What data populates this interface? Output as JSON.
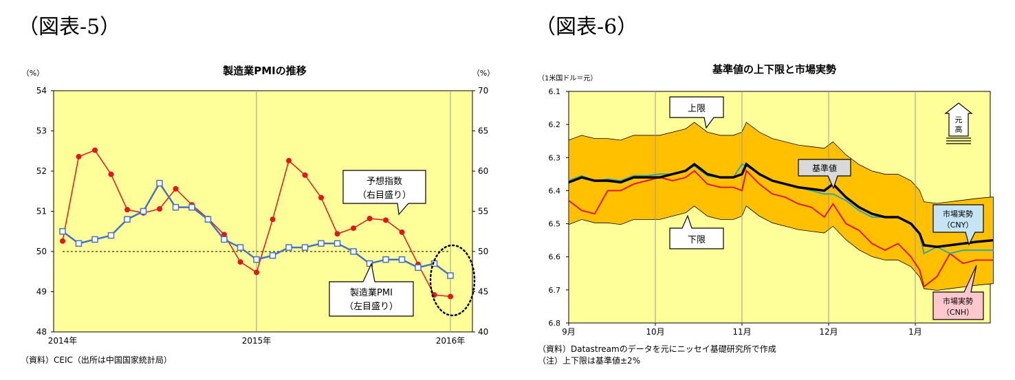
{
  "figures": [
    {
      "label": "（図表-5）"
    },
    {
      "label": "（図表-6）"
    }
  ],
  "chart_data": [
    {
      "type": "line",
      "title": "製造業PMIの推移",
      "left_unit": "（%）",
      "right_unit": "（%）",
      "y_left": {
        "min": 48,
        "max": 54,
        "ticks": [
          "48",
          "49",
          "50",
          "51",
          "52",
          "53",
          "54"
        ]
      },
      "y_right": {
        "min": 40,
        "max": 70,
        "ticks": [
          "40",
          "45",
          "50",
          "55",
          "60",
          "65",
          "70"
        ]
      },
      "x_labels": [
        {
          "label": "2014年",
          "index": 0
        },
        {
          "label": "2015年",
          "index": 12
        },
        {
          "label": "2016年",
          "index": 24
        }
      ],
      "series": [
        {
          "name": "製造業PMI",
          "axis": "left",
          "color": "#4472C4",
          "marker": "square",
          "values": [
            50.5,
            50.2,
            50.3,
            50.4,
            50.8,
            51.0,
            51.7,
            51.1,
            51.1,
            50.8,
            50.3,
            50.1,
            49.8,
            49.9,
            50.1,
            50.1,
            50.2,
            50.2,
            50.0,
            49.7,
            49.8,
            49.8,
            49.6,
            49.7,
            49.4
          ]
        },
        {
          "name": "予想指数",
          "axis": "right",
          "color": "#E8141B",
          "marker": "circle",
          "values": [
            51.3,
            61.8,
            62.6,
            59.6,
            55.2,
            54.8,
            55.3,
            57.8,
            55.8,
            54.1,
            52.1,
            48.7,
            47.4,
            54.0,
            61.3,
            59.5,
            56.7,
            52.2,
            52.9,
            54.1,
            53.9,
            52.4,
            48.4,
            44.6,
            44.4
          ]
        }
      ],
      "reference_line": {
        "axis": "left",
        "value": 50
      },
      "annotations": [
        {
          "text_lines": [
            "予想指数",
            "（右目盛り）"
          ]
        },
        {
          "text_lines": [
            "製造業PMI",
            "（左目盛り）"
          ]
        }
      ],
      "source": "（資料）CEIC（出所は中国国家統計局）"
    },
    {
      "type": "area",
      "title": "基準値の上下限と市場実勢",
      "unit": "（1米国ドル＝元）",
      "y": {
        "min": 6.1,
        "max": 6.8,
        "inverted": true,
        "ticks": [
          "6.1",
          "6.2",
          "6.3",
          "6.4",
          "6.5",
          "6.6",
          "6.7",
          "6.8"
        ]
      },
      "x_labels": [
        "9月",
        "10月",
        "11月",
        "12月",
        "1月"
      ],
      "x_range_months": [
        0,
        4.9
      ],
      "x": [
        0,
        0.15,
        0.3,
        0.45,
        0.6,
        0.75,
        0.9,
        1.05,
        1.2,
        1.35,
        1.45,
        1.6,
        1.75,
        1.9,
        2.0,
        2.05,
        2.2,
        2.35,
        2.5,
        2.65,
        2.8,
        2.95,
        3.05,
        3.2,
        3.35,
        3.5,
        3.65,
        3.8,
        3.95,
        4.05,
        4.1,
        4.25,
        4.4,
        4.55,
        4.7,
        4.9
      ],
      "series": [
        {
          "name": "基準値",
          "color": "#000000",
          "values": [
            6.375,
            6.36,
            6.37,
            6.37,
            6.375,
            6.36,
            6.36,
            6.36,
            6.35,
            6.34,
            6.32,
            6.35,
            6.36,
            6.36,
            6.35,
            6.32,
            6.35,
            6.37,
            6.38,
            6.39,
            6.395,
            6.4,
            6.38,
            6.42,
            6.45,
            6.47,
            6.48,
            6.48,
            6.5,
            6.53,
            6.565,
            6.57,
            6.565,
            6.56,
            6.555,
            6.55
          ]
        },
        {
          "name": "市場実勢（CNY）",
          "color": "#2FA8A8",
          "values": [
            6.37,
            6.355,
            6.37,
            6.365,
            6.37,
            6.355,
            6.355,
            6.35,
            6.35,
            6.34,
            6.325,
            6.355,
            6.36,
            6.36,
            6.32,
            6.325,
            6.35,
            6.37,
            6.38,
            6.39,
            6.4,
            6.41,
            6.41,
            6.43,
            6.46,
            6.48,
            6.48,
            6.48,
            6.5,
            6.53,
            6.59,
            6.57,
            6.59,
            6.58,
            6.58,
            6.58
          ]
        },
        {
          "name": "市場実勢（CNH）",
          "color": "#E8141B",
          "values": [
            6.43,
            6.46,
            6.47,
            6.4,
            6.4,
            6.38,
            6.37,
            6.36,
            6.37,
            6.36,
            6.34,
            6.38,
            6.39,
            6.39,
            6.4,
            6.34,
            6.38,
            6.41,
            6.42,
            6.44,
            6.45,
            6.48,
            6.44,
            6.5,
            6.52,
            6.56,
            6.58,
            6.56,
            6.6,
            6.64,
            6.69,
            6.66,
            6.59,
            6.62,
            6.61,
            6.61
          ]
        }
      ],
      "band": {
        "name": "上下限",
        "color": "#FFC000",
        "upper_offset": 0.02
      },
      "annotations": [
        {
          "text": "上限"
        },
        {
          "text": "下限"
        },
        {
          "text": "基準値"
        },
        {
          "text_lines": [
            "市場実勢",
            "（CNY）"
          ]
        },
        {
          "text_lines": [
            "市場実勢",
            "（CNH）"
          ]
        },
        {
          "text_lines": [
            "元",
            "高"
          ]
        }
      ],
      "source": "（資料）Datastreamのデータを元にニッセイ基礎研究所で作成",
      "note": "（注）上下限は基準値±2%"
    }
  ]
}
